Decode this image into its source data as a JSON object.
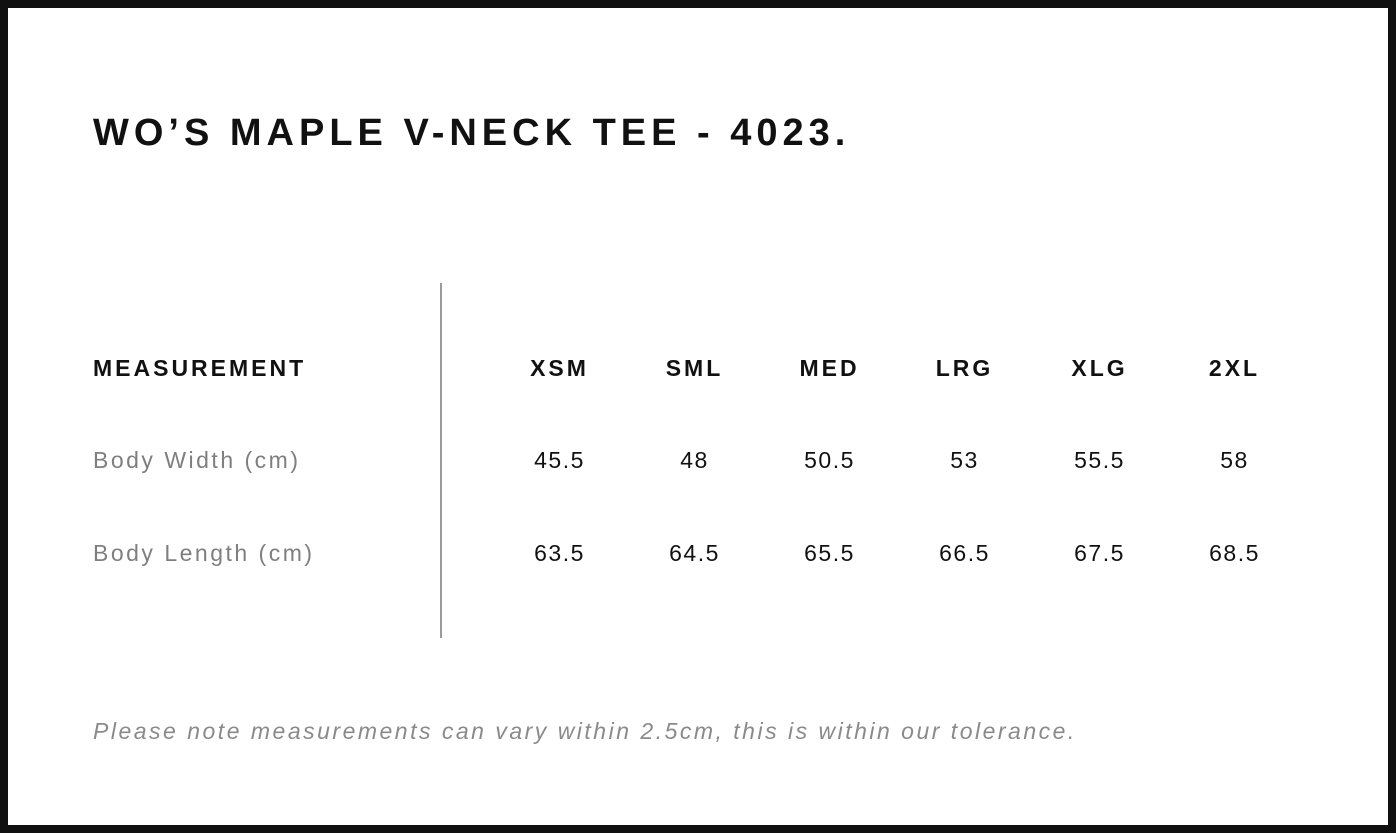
{
  "page": {
    "title": "WO’S MAPLE V-NECK TEE - 4023."
  },
  "size_chart": {
    "measurement_header": "MEASUREMENT",
    "size_headers": [
      "XSM",
      "SML",
      "MED",
      "LRG",
      "XLG",
      "2XL"
    ],
    "rows": [
      {
        "label": "Body Width (cm)",
        "values": [
          "45.5",
          "48",
          "50.5",
          "53",
          "55.5",
          "58"
        ]
      },
      {
        "label": "Body Length (cm)",
        "values": [
          "63.5",
          "64.5",
          "65.5",
          "66.5",
          "67.5",
          "68.5"
        ]
      }
    ]
  },
  "footer": {
    "note": "Please note measurements can vary within 2.5cm, this is within our tolerance."
  },
  "colors": {
    "frame": "#101010",
    "text_primary": "#111111",
    "text_muted": "#7f7f7f",
    "note_text": "#8a8a8a",
    "divider": "#9b9b9b"
  }
}
